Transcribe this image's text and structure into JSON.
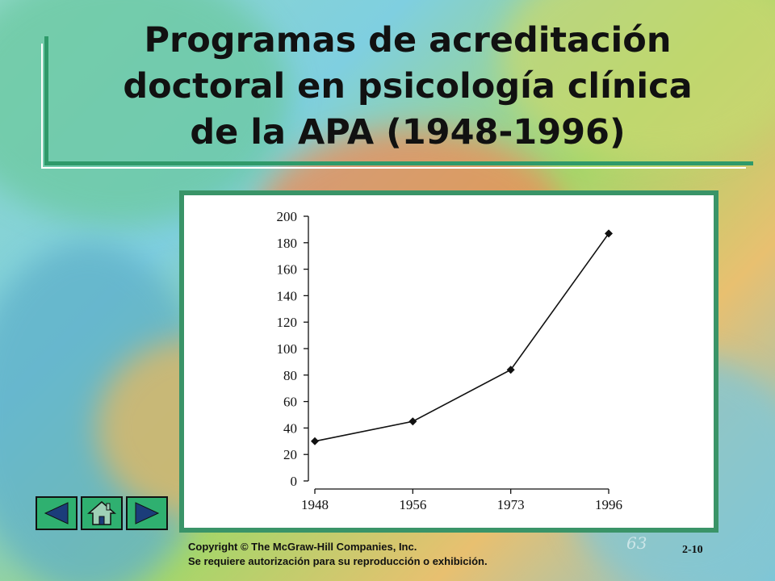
{
  "slide": {
    "title_lines": [
      "Programas de acreditación",
      "doctoral en psicología clínica",
      "de la APA (1948-1996)"
    ],
    "copyright_line1": "Copyright © The McGraw-Hill Companies, Inc.",
    "copyright_line2": "Se requiere autorización para su reproducción o exhibición.",
    "slide_number": "2-10",
    "logo_text": "63"
  },
  "nav": {
    "prev_icon": "left-triangle-icon",
    "home_icon": "home-icon",
    "next_icon": "right-triangle-icon",
    "button_color": "#2fb070"
  },
  "colors": {
    "frame_green": "#3a9468",
    "title_rule": "#2f9a6a"
  },
  "chart_data": {
    "type": "line",
    "title": "",
    "xlabel": "",
    "ylabel": "",
    "categories": [
      "1948",
      "1956",
      "1973",
      "1996"
    ],
    "values": [
      30,
      45,
      84,
      187
    ],
    "ylim": [
      0,
      200
    ],
    "yticks": [
      0,
      20,
      40,
      60,
      80,
      100,
      120,
      140,
      160,
      180,
      200
    ],
    "marker": "diamond",
    "grid": false
  }
}
